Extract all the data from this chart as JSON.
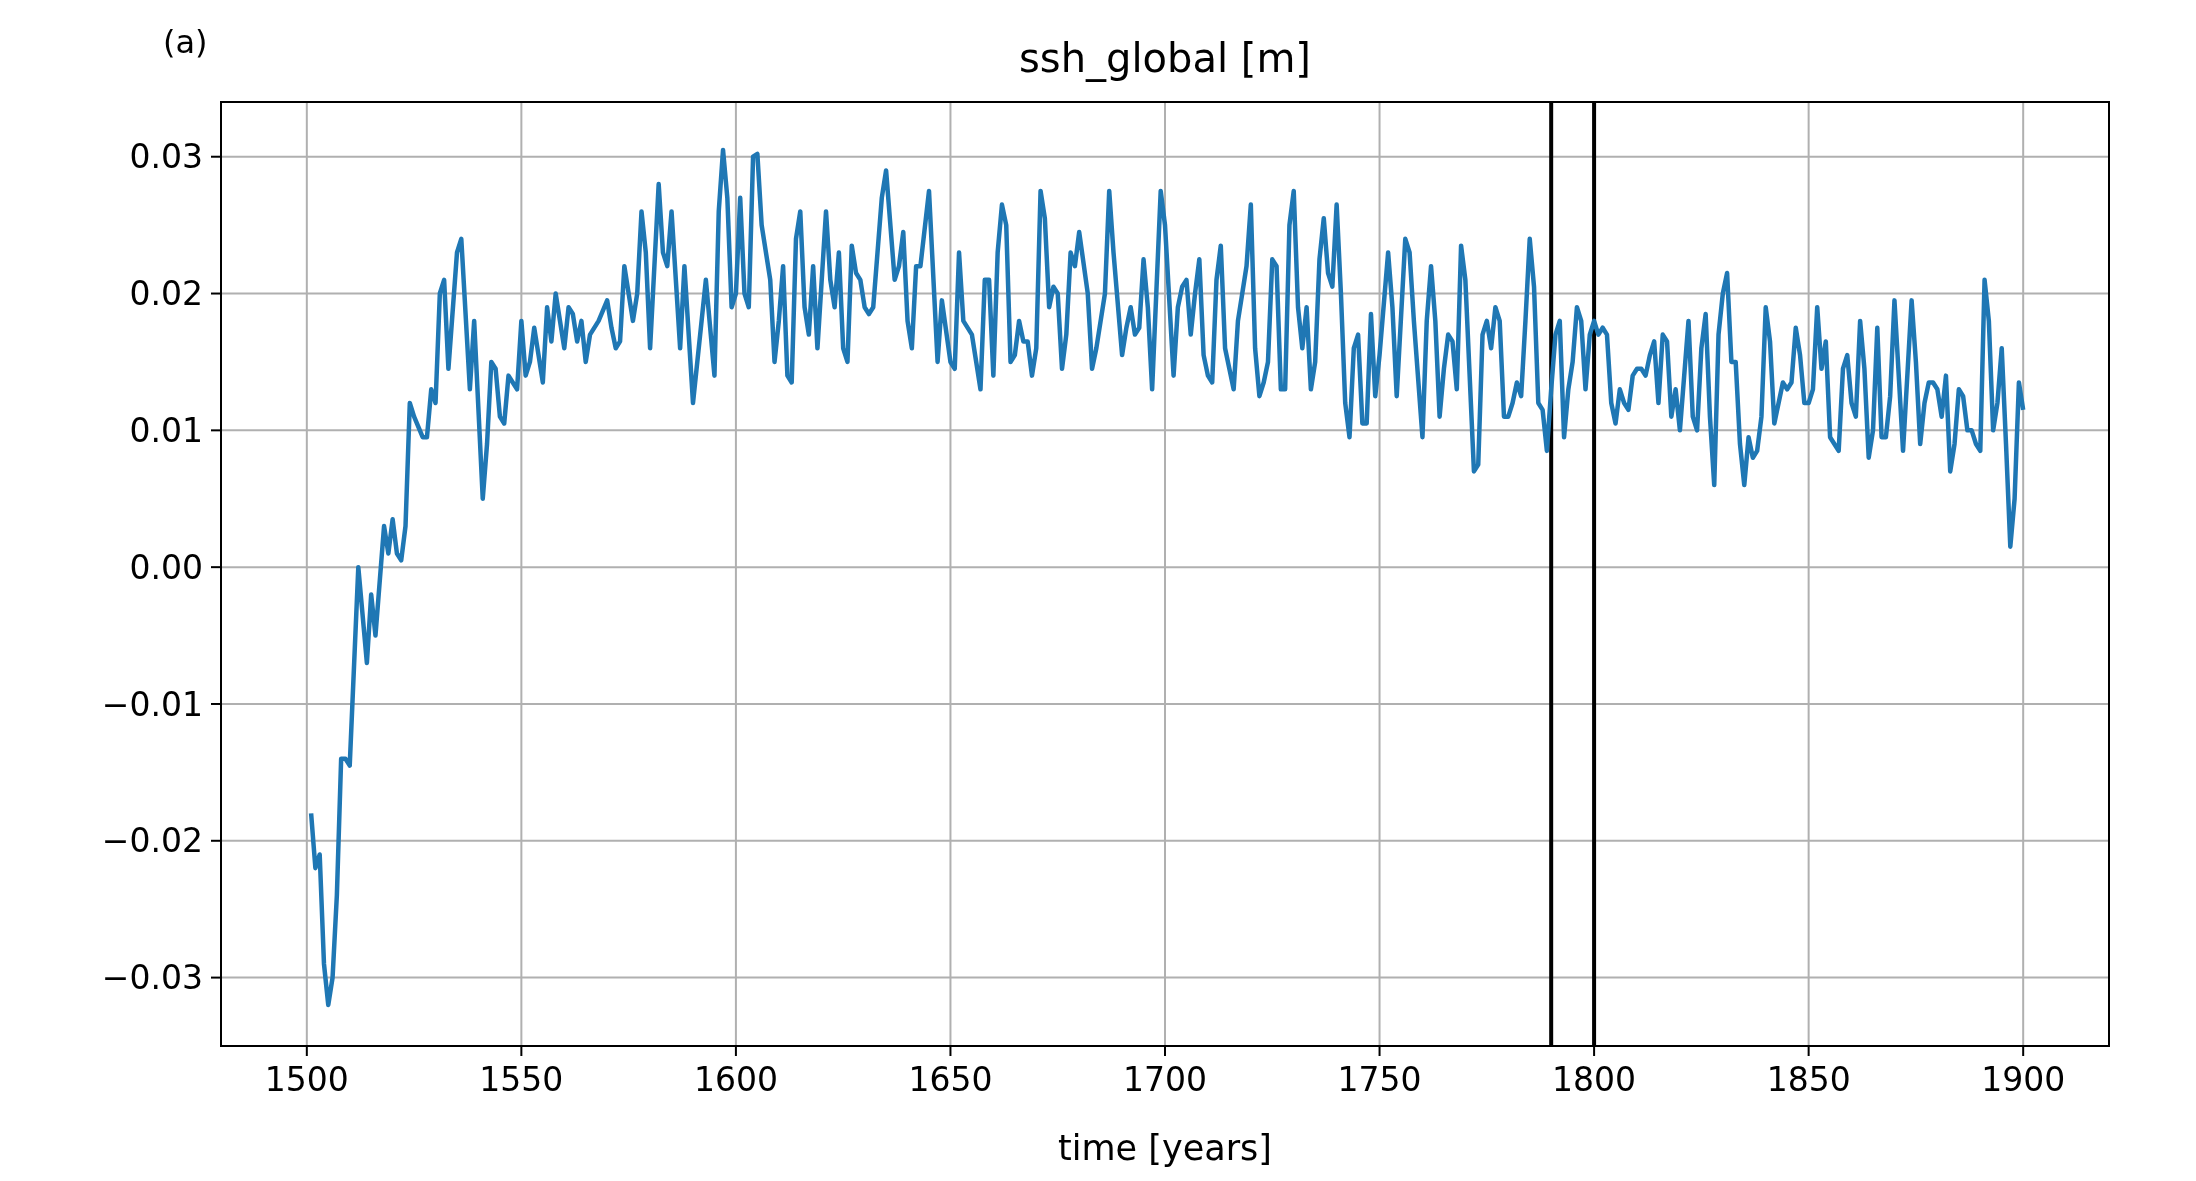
{
  "chart_data": {
    "type": "line",
    "title": "ssh_global [m]",
    "xlabel": "time [years]",
    "annotations": [
      "(a)"
    ],
    "x": [
      1501,
      1502,
      1503,
      1504,
      1505,
      1506,
      1507,
      1508,
      1509,
      1510,
      1512,
      1514,
      1515,
      1516,
      1518,
      1519,
      1520,
      1521,
      1522,
      1523,
      1524,
      1525,
      1527,
      1528,
      1529,
      1530,
      1531,
      1532,
      1533,
      1535,
      1536,
      1538,
      1539,
      1541,
      1542,
      1543,
      1544,
      1545,
      1546,
      1547,
      1548,
      1549,
      1550,
      1551,
      1552,
      1553,
      1555,
      1556,
      1557,
      1558,
      1559,
      1560,
      1561,
      1562,
      1563,
      1564,
      1565,
      1566,
      1568,
      1570,
      1571,
      1572,
      1573,
      1574,
      1576,
      1577,
      1578,
      1579,
      1580,
      1582,
      1583,
      1584,
      1585,
      1587,
      1588,
      1590,
      1592,
      1593,
      1595,
      1596,
      1597,
      1598,
      1599,
      1600,
      1601,
      1602,
      1603,
      1604,
      1605,
      1606,
      1608,
      1609,
      1610,
      1611,
      1612,
      1613,
      1614,
      1615,
      1616,
      1617,
      1618,
      1619,
      1621,
      1622,
      1623,
      1624,
      1625,
      1626,
      1627,
      1628,
      1629,
      1630,
      1631,
      1632,
      1634,
      1635,
      1637,
      1638,
      1639,
      1640,
      1641,
      1642,
      1643,
      1645,
      1647,
      1648,
      1650,
      1651,
      1652,
      1653,
      1655,
      1656,
      1657,
      1658,
      1659,
      1660,
      1661,
      1662,
      1663,
      1664,
      1665,
      1666,
      1667,
      1668,
      1669,
      1670,
      1671,
      1672,
      1673,
      1674,
      1675,
      1676,
      1677,
      1678,
      1679,
      1680,
      1682,
      1683,
      1684,
      1686,
      1687,
      1688,
      1690,
      1691,
      1692,
      1693,
      1694,
      1695,
      1696,
      1697,
      1699,
      1700,
      1702,
      1703,
      1704,
      1705,
      1706,
      1707,
      1708,
      1709,
      1710,
      1711,
      1712,
      1713,
      1714,
      1715,
      1716,
      1717,
      1718,
      1719,
      1720,
      1721,
      1722,
      1723,
      1724,
      1725,
      1726,
      1727,
      1728,
      1729,
      1730,
      1731,
      1732,
      1733,
      1734,
      1735,
      1736,
      1737,
      1738,
      1739,
      1740,
      1741,
      1742,
      1743,
      1744,
      1745,
      1746,
      1747,
      1748,
      1749,
      1750,
      1752,
      1753,
      1754,
      1756,
      1757,
      1758,
      1760,
      1761,
      1762,
      1763,
      1764,
      1765,
      1766,
      1767,
      1768,
      1769,
      1770,
      1772,
      1773,
      1774,
      1775,
      1776,
      1777,
      1778,
      1779,
      1780,
      1781,
      1782,
      1783,
      1784,
      1785,
      1786,
      1787,
      1788,
      1789,
      1790,
      1791,
      1792,
      1793,
      1794,
      1795,
      1796,
      1797,
      1798,
      1799,
      1800,
      1801,
      1802,
      1803,
      1804,
      1805,
      1806,
      1807,
      1808,
      1809,
      1810,
      1811,
      1812,
      1813,
      1814,
      1815,
      1816,
      1817,
      1818,
      1819,
      1820,
      1821,
      1822,
      1823,
      1824,
      1825,
      1826,
      1827,
      1828,
      1829,
      1830,
      1831,
      1832,
      1833,
      1834,
      1835,
      1836,
      1837,
      1838,
      1839,
      1840,
      1841,
      1842,
      1843,
      1844,
      1845,
      1846,
      1847,
      1848,
      1849,
      1850,
      1851,
      1852,
      1853,
      1854,
      1855,
      1856,
      1857,
      1858,
      1859,
      1860,
      1861,
      1862,
      1863,
      1864,
      1865,
      1866,
      1867,
      1868,
      1869,
      1870,
      1872,
      1874,
      1875,
      1876,
      1877,
      1878,
      1879,
      1880,
      1881,
      1882,
      1883,
      1884,
      1885,
      1886,
      1887,
      1888,
      1889,
      1890,
      1891,
      1892,
      1893,
      1894,
      1895,
      1896,
      1897,
      1898,
      1899,
      1900
    ],
    "series": [
      {
        "color": "#1f77b4",
        "values": [
          -0.018,
          -0.022,
          -0.021,
          -0.029,
          -0.032,
          -0.03,
          -0.024,
          -0.014,
          -0.014,
          -0.0145,
          0.0,
          -0.007,
          -0.002,
          -0.005,
          0.003,
          0.001,
          0.0035,
          0.001,
          0.0005,
          0.003,
          0.012,
          0.011,
          0.0095,
          0.0095,
          0.013,
          0.012,
          0.02,
          0.021,
          0.0145,
          0.023,
          0.024,
          0.013,
          0.018,
          0.005,
          0.009,
          0.015,
          0.0145,
          0.011,
          0.0105,
          0.014,
          0.0135,
          0.013,
          0.018,
          0.014,
          0.015,
          0.0175,
          0.0135,
          0.019,
          0.0165,
          0.02,
          0.018,
          0.016,
          0.019,
          0.0185,
          0.0165,
          0.018,
          0.015,
          0.017,
          0.018,
          0.0195,
          0.0175,
          0.016,
          0.0165,
          0.022,
          0.018,
          0.02,
          0.026,
          0.023,
          0.016,
          0.028,
          0.023,
          0.022,
          0.026,
          0.016,
          0.022,
          0.012,
          0.018,
          0.021,
          0.014,
          0.026,
          0.0305,
          0.027,
          0.019,
          0.02,
          0.027,
          0.02,
          0.019,
          0.03,
          0.0302,
          0.025,
          0.021,
          0.015,
          0.018,
          0.022,
          0.014,
          0.0135,
          0.024,
          0.026,
          0.019,
          0.017,
          0.022,
          0.016,
          0.026,
          0.021,
          0.019,
          0.023,
          0.016,
          0.015,
          0.0235,
          0.0215,
          0.021,
          0.019,
          0.0185,
          0.019,
          0.027,
          0.029,
          0.021,
          0.022,
          0.0245,
          0.018,
          0.016,
          0.022,
          0.022,
          0.0275,
          0.015,
          0.0195,
          0.015,
          0.0145,
          0.023,
          0.018,
          0.017,
          0.015,
          0.013,
          0.021,
          0.021,
          0.014,
          0.023,
          0.0265,
          0.025,
          0.015,
          0.0155,
          0.018,
          0.0165,
          0.0165,
          0.014,
          0.016,
          0.0275,
          0.0255,
          0.019,
          0.0205,
          0.02,
          0.0145,
          0.017,
          0.023,
          0.022,
          0.0245,
          0.02,
          0.0145,
          0.016,
          0.02,
          0.0275,
          0.023,
          0.0155,
          0.0175,
          0.019,
          0.017,
          0.0175,
          0.0225,
          0.019,
          0.013,
          0.0275,
          0.025,
          0.014,
          0.019,
          0.0205,
          0.021,
          0.017,
          0.02,
          0.0225,
          0.0155,
          0.014,
          0.0135,
          0.021,
          0.0235,
          0.016,
          0.0145,
          0.013,
          0.018,
          0.02,
          0.022,
          0.0265,
          0.016,
          0.0125,
          0.0135,
          0.015,
          0.0225,
          0.022,
          0.013,
          0.013,
          0.025,
          0.0275,
          0.019,
          0.016,
          0.019,
          0.013,
          0.015,
          0.0225,
          0.0255,
          0.0215,
          0.0205,
          0.0265,
          0.02,
          0.012,
          0.0095,
          0.016,
          0.017,
          0.0105,
          0.0105,
          0.0185,
          0.0125,
          0.0155,
          0.023,
          0.019,
          0.0125,
          0.024,
          0.023,
          0.018,
          0.0095,
          0.018,
          0.022,
          0.018,
          0.011,
          0.0145,
          0.017,
          0.0165,
          0.013,
          0.0235,
          0.021,
          0.007,
          0.0075,
          0.017,
          0.018,
          0.016,
          0.019,
          0.018,
          0.011,
          0.011,
          0.012,
          0.0135,
          0.0125,
          0.018,
          0.024,
          0.0205,
          0.012,
          0.0115,
          0.0085,
          0.013,
          0.017,
          0.018,
          0.0095,
          0.013,
          0.015,
          0.019,
          0.018,
          0.013,
          0.017,
          0.018,
          0.017,
          0.0175,
          0.017,
          0.012,
          0.0105,
          0.013,
          0.012,
          0.0115,
          0.014,
          0.0145,
          0.0145,
          0.014,
          0.0155,
          0.0165,
          0.012,
          0.017,
          0.0165,
          0.011,
          0.013,
          0.01,
          0.014,
          0.018,
          0.011,
          0.01,
          0.016,
          0.0185,
          0.011,
          0.006,
          0.017,
          0.02,
          0.0215,
          0.015,
          0.015,
          0.009,
          0.006,
          0.0095,
          0.008,
          0.0085,
          0.011,
          0.019,
          0.0165,
          0.0105,
          0.012,
          0.0135,
          0.013,
          0.0135,
          0.0175,
          0.0155,
          0.012,
          0.012,
          0.013,
          0.019,
          0.0145,
          0.0165,
          0.0095,
          0.009,
          0.0085,
          0.0145,
          0.0155,
          0.012,
          0.011,
          0.018,
          0.0145,
          0.008,
          0.01,
          0.0175,
          0.0095,
          0.0095,
          0.0125,
          0.0195,
          0.0085,
          0.0195,
          0.015,
          0.009,
          0.012,
          0.0135,
          0.0135,
          0.013,
          0.011,
          0.014,
          0.007,
          0.009,
          0.013,
          0.0125,
          0.01,
          0.01,
          0.009,
          0.0085,
          0.021,
          0.018,
          0.01,
          0.012,
          0.016,
          0.009,
          0.0015,
          0.005,
          0.0135,
          0.0115
        ]
      }
    ],
    "xlim": [
      1480,
      1920
    ],
    "xticks": [
      1500,
      1550,
      1600,
      1650,
      1700,
      1750,
      1800,
      1850,
      1900
    ],
    "ylim": [
      -0.035,
      0.034
    ],
    "yticks": [
      {
        "value": -0.03,
        "label": "−0.03"
      },
      {
        "value": -0.02,
        "label": "−0.02"
      },
      {
        "value": -0.01,
        "label": "−0.01"
      },
      {
        "value": 0,
        "label": "0.00"
      },
      {
        "value": 0.01,
        "label": "0.01"
      },
      {
        "value": 0.02,
        "label": "0.02"
      },
      {
        "value": 0.03,
        "label": "0.03"
      }
    ],
    "ref_lines": [
      {
        "axis": "x",
        "value": 1790,
        "color": "#000000"
      },
      {
        "axis": "x",
        "value": 1800,
        "color": "#000000"
      }
    ],
    "grid": true
  }
}
